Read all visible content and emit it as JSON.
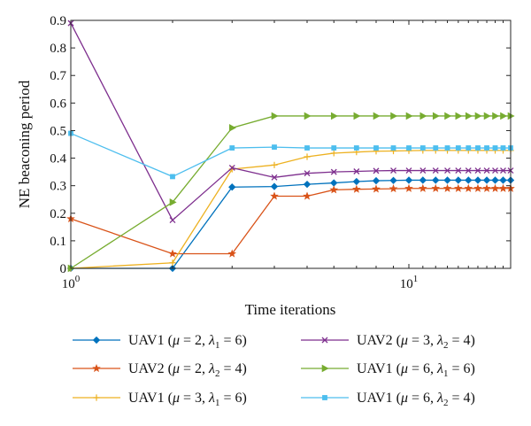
{
  "chart_data": {
    "type": "line",
    "xscale": "log",
    "xlim": [
      1,
      20
    ],
    "ylim": [
      0,
      0.9
    ],
    "xlabel": "Time iterations",
    "ylabel": "NE beaconing period",
    "grid": false,
    "legend_position": "bottom",
    "x_ticks": [
      {
        "value": 1,
        "base": "10",
        "exp": "0"
      },
      {
        "value": 10,
        "base": "10",
        "exp": "1"
      }
    ],
    "y_ticks": [
      "0",
      "0.1",
      "0.2",
      "0.3",
      "0.4",
      "0.5",
      "0.6",
      "0.7",
      "0.8",
      "0.9"
    ],
    "x": [
      1,
      2,
      3,
      4,
      5,
      6,
      7,
      8,
      9,
      10,
      11,
      12,
      13,
      14,
      15,
      16,
      17,
      18,
      19,
      20
    ],
    "series": [
      {
        "name": "UAV1 (μ = 2, λ1 = 6)",
        "legend": {
          "uav": "UAV1 (",
          "mu": "μ",
          "mu_eq": " = 2, ",
          "lam": "λ",
          "sub": "1",
          "lam_eq": " = 6)"
        },
        "color": "#0072BD",
        "marker": "diamond",
        "values": [
          0.0,
          0.0,
          0.295,
          0.297,
          0.305,
          0.31,
          0.315,
          0.318,
          0.319,
          0.32,
          0.32,
          0.32,
          0.32,
          0.32,
          0.32,
          0.32,
          0.32,
          0.32,
          0.32,
          0.32
        ]
      },
      {
        "name": "UAV2 (μ = 2, λ2 = 4)",
        "legend": {
          "uav": "UAV2 (",
          "mu": "μ",
          "mu_eq": " = 2, ",
          "lam": "λ",
          "sub": "2",
          "lam_eq": " = 4)"
        },
        "color": "#D95319",
        "marker": "star",
        "values": [
          0.18,
          0.053,
          0.053,
          0.262,
          0.262,
          0.285,
          0.287,
          0.288,
          0.289,
          0.29,
          0.29,
          0.29,
          0.29,
          0.29,
          0.29,
          0.29,
          0.29,
          0.29,
          0.29,
          0.29
        ]
      },
      {
        "name": "UAV1 (μ = 3, λ1 = 6)",
        "legend": {
          "uav": "UAV1 (",
          "mu": "μ",
          "mu_eq": " = 3, ",
          "lam": "λ",
          "sub": "1",
          "lam_eq": " = 6)"
        },
        "color": "#EDB120",
        "marker": "plus",
        "values": [
          0.0,
          0.02,
          0.36,
          0.375,
          0.405,
          0.418,
          0.422,
          0.425,
          0.426,
          0.427,
          0.428,
          0.428,
          0.428,
          0.428,
          0.428,
          0.428,
          0.428,
          0.428,
          0.428,
          0.428
        ]
      },
      {
        "name": "UAV2 (μ = 3, λ2 = 4)",
        "legend": {
          "uav": "UAV2 (",
          "mu": "μ",
          "mu_eq": " = 3, ",
          "lam": "λ",
          "sub": "2",
          "lam_eq": " = 4)"
        },
        "color": "#7E2F8E",
        "marker": "x",
        "values": [
          0.89,
          0.175,
          0.365,
          0.33,
          0.345,
          0.35,
          0.352,
          0.354,
          0.355,
          0.355,
          0.355,
          0.355,
          0.355,
          0.355,
          0.355,
          0.355,
          0.355,
          0.355,
          0.355,
          0.355
        ]
      },
      {
        "name": "UAV1 (μ = 6, λ1 = 6)",
        "legend": {
          "uav": "UAV1 (",
          "mu": "μ",
          "mu_eq": " = 6, ",
          "lam": "λ",
          "sub": "1",
          "lam_eq": " = 6)"
        },
        "color": "#77AC30",
        "marker": "triangle-right",
        "values": [
          0.0,
          0.24,
          0.51,
          0.553,
          0.553,
          0.553,
          0.553,
          0.553,
          0.553,
          0.553,
          0.553,
          0.553,
          0.553,
          0.553,
          0.553,
          0.553,
          0.553,
          0.553,
          0.553,
          0.553
        ]
      },
      {
        "name": "UAV1 (μ = 6, λ2 = 4)",
        "legend": {
          "uav": "UAV1 (",
          "mu": "μ",
          "mu_eq": " = 6, ",
          "lam": "λ",
          "sub": "2",
          "lam_eq": " = 4)"
        },
        "color": "#4DBEEE",
        "marker": "square",
        "values": [
          0.49,
          0.333,
          0.437,
          0.44,
          0.437,
          0.437,
          0.437,
          0.437,
          0.437,
          0.437,
          0.437,
          0.437,
          0.437,
          0.437,
          0.437,
          0.437,
          0.437,
          0.437,
          0.437,
          0.437
        ]
      }
    ]
  }
}
